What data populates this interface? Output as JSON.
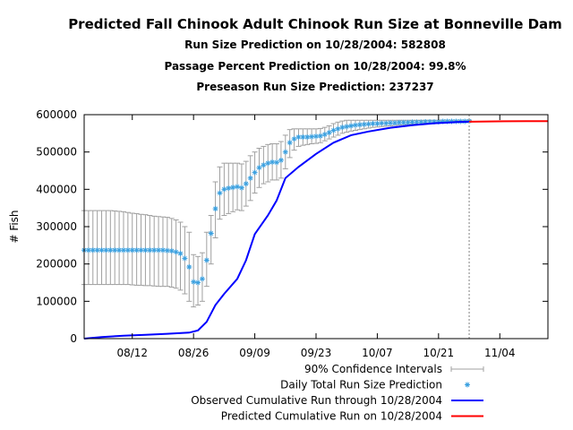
{
  "chart_data": {
    "type": "line",
    "title": "Predicted Fall Chinook Adult Chinook Run Size at Bonneville Dam",
    "subtitles": [
      "Run Size Prediction on 10/28/2004: 582808",
      "Passage Percent Prediction on 10/28/2004: 99.8%",
      "Preseason Run Size Prediction: 237237"
    ],
    "ylabel": "# Fish",
    "xlabel": "",
    "x_range": [
      "2004-08-01",
      "2004-11-15"
    ],
    "ylim": [
      0,
      600000
    ],
    "y_ticks": [
      0,
      100000,
      200000,
      300000,
      400000,
      500000,
      600000
    ],
    "y_tick_labels": [
      "0",
      "100000",
      "200000",
      "300000",
      "400000",
      "500000",
      "600000"
    ],
    "x_ticks": [
      "2004-08-12",
      "2004-08-26",
      "2004-09-09",
      "2004-09-23",
      "2004-10-07",
      "2004-10-21",
      "2004-11-04"
    ],
    "x_tick_labels": [
      "08/12",
      "08/26",
      "09/09",
      "09/23",
      "10/07",
      "10/21",
      "11/04"
    ],
    "prediction_date": "2004-10-28",
    "colors": {
      "observed": "#0000ff",
      "predicted": "#ff0000",
      "daily": "#3aa0e0",
      "ci": "#a0a0a0",
      "vline": "#808080"
    },
    "legend_position": "bottom-right",
    "legend": [
      {
        "label": "90% Confidence Intervals",
        "kind": "ci"
      },
      {
        "label": "Daily Total Run Size Prediction",
        "kind": "daily"
      },
      {
        "label": "Observed Cumulative Run through 10/28/2004",
        "kind": "observed"
      },
      {
        "label": "Predicted Cumulative Run on 10/28/2004",
        "kind": "predicted"
      }
    ],
    "series": [
      {
        "name": "Observed Cumulative Run through 10/28/2004",
        "type": "line",
        "points": [
          [
            "2004-08-01",
            0
          ],
          [
            "2004-08-05",
            4000
          ],
          [
            "2004-08-10",
            8000
          ],
          [
            "2004-08-15",
            10000
          ],
          [
            "2004-08-20",
            13000
          ],
          [
            "2004-08-25",
            16000
          ],
          [
            "2004-08-27",
            22000
          ],
          [
            "2004-08-29",
            45000
          ],
          [
            "2004-08-31",
            90000
          ],
          [
            "2004-09-02",
            120000
          ],
          [
            "2004-09-05",
            160000
          ],
          [
            "2004-09-07",
            210000
          ],
          [
            "2004-09-09",
            280000
          ],
          [
            "2004-09-12",
            330000
          ],
          [
            "2004-09-14",
            370000
          ],
          [
            "2004-09-16",
            430000
          ],
          [
            "2004-09-19",
            460000
          ],
          [
            "2004-09-23",
            495000
          ],
          [
            "2004-09-27",
            525000
          ],
          [
            "2004-10-01",
            545000
          ],
          [
            "2004-10-05",
            555000
          ],
          [
            "2004-10-10",
            565000
          ],
          [
            "2004-10-15",
            572000
          ],
          [
            "2004-10-20",
            577000
          ],
          [
            "2004-10-25",
            580000
          ],
          [
            "2004-10-28",
            581000
          ]
        ]
      },
      {
        "name": "Predicted Cumulative Run on 10/28/2004",
        "type": "line",
        "points": [
          [
            "2004-10-28",
            581000
          ],
          [
            "2004-11-01",
            581800
          ],
          [
            "2004-11-05",
            582200
          ],
          [
            "2004-11-10",
            582600
          ],
          [
            "2004-11-15",
            582808
          ]
        ]
      },
      {
        "name": "Daily Total Run Size Prediction",
        "type": "scatter_with_error",
        "points": [
          [
            "2004-08-01",
            237000,
            145000,
            343000
          ],
          [
            "2004-08-02",
            237000,
            145000,
            343000
          ],
          [
            "2004-08-03",
            237000,
            145000,
            343000
          ],
          [
            "2004-08-04",
            237000,
            145000,
            343000
          ],
          [
            "2004-08-05",
            237000,
            145000,
            343000
          ],
          [
            "2004-08-06",
            237000,
            145000,
            343000
          ],
          [
            "2004-08-07",
            237000,
            145000,
            343000
          ],
          [
            "2004-08-08",
            237000,
            145000,
            342000
          ],
          [
            "2004-08-09",
            237000,
            145000,
            341000
          ],
          [
            "2004-08-10",
            237000,
            145000,
            340000
          ],
          [
            "2004-08-11",
            237000,
            145000,
            338000
          ],
          [
            "2004-08-12",
            237000,
            144000,
            336000
          ],
          [
            "2004-08-13",
            237000,
            143000,
            335000
          ],
          [
            "2004-08-14",
            237000,
            143000,
            333000
          ],
          [
            "2004-08-15",
            237000,
            142000,
            332000
          ],
          [
            "2004-08-16",
            237000,
            142000,
            330000
          ],
          [
            "2004-08-17",
            237000,
            141000,
            328000
          ],
          [
            "2004-08-18",
            237000,
            140000,
            327000
          ],
          [
            "2004-08-19",
            237000,
            140000,
            326000
          ],
          [
            "2004-08-20",
            236000,
            140000,
            325000
          ],
          [
            "2004-08-21",
            235000,
            138000,
            322000
          ],
          [
            "2004-08-22",
            232000,
            135000,
            318000
          ],
          [
            "2004-08-23",
            228000,
            130000,
            312000
          ],
          [
            "2004-08-24",
            215000,
            120000,
            300000
          ],
          [
            "2004-08-25",
            192000,
            100000,
            285000
          ],
          [
            "2004-08-26",
            152000,
            85000,
            225000
          ],
          [
            "2004-08-27",
            150000,
            90000,
            220000
          ],
          [
            "2004-08-28",
            160000,
            100000,
            230000
          ],
          [
            "2004-08-29",
            210000,
            140000,
            285000
          ],
          [
            "2004-08-30",
            282000,
            200000,
            330000
          ],
          [
            "2004-08-31",
            348000,
            270000,
            420000
          ],
          [
            "2004-09-01",
            390000,
            320000,
            460000
          ],
          [
            "2004-09-02",
            400000,
            330000,
            470000
          ],
          [
            "2004-09-03",
            403000,
            335000,
            470000
          ],
          [
            "2004-09-04",
            405000,
            340000,
            470000
          ],
          [
            "2004-09-05",
            407000,
            345000,
            470000
          ],
          [
            "2004-09-06",
            404000,
            343000,
            468000
          ],
          [
            "2004-09-07",
            415000,
            355000,
            475000
          ],
          [
            "2004-09-08",
            430000,
            370000,
            490000
          ],
          [
            "2004-09-09",
            445000,
            390000,
            500000
          ],
          [
            "2004-09-10",
            458000,
            405000,
            510000
          ],
          [
            "2004-09-11",
            465000,
            415000,
            515000
          ],
          [
            "2004-09-12",
            470000,
            420000,
            520000
          ],
          [
            "2004-09-13",
            473000,
            425000,
            522000
          ],
          [
            "2004-09-14",
            472000,
            425000,
            522000
          ],
          [
            "2004-09-15",
            478000,
            430000,
            528000
          ],
          [
            "2004-09-16",
            500000,
            455000,
            545000
          ],
          [
            "2004-09-17",
            525000,
            485000,
            560000
          ],
          [
            "2004-09-18",
            535000,
            505000,
            562000
          ],
          [
            "2004-09-19",
            540000,
            515000,
            562000
          ],
          [
            "2004-09-20",
            540000,
            518000,
            562000
          ],
          [
            "2004-09-21",
            540000,
            520000,
            562000
          ],
          [
            "2004-09-22",
            541000,
            522000,
            562000
          ],
          [
            "2004-09-23",
            542000,
            523000,
            562000
          ],
          [
            "2004-09-24",
            543000,
            525000,
            563000
          ],
          [
            "2004-09-25",
            547000,
            530000,
            566000
          ],
          [
            "2004-09-26",
            552000,
            535000,
            570000
          ],
          [
            "2004-09-27",
            558000,
            540000,
            576000
          ],
          [
            "2004-09-28",
            562000,
            545000,
            580000
          ],
          [
            "2004-09-29",
            566000,
            550000,
            583000
          ],
          [
            "2004-09-30",
            568000,
            553000,
            585000
          ],
          [
            "2004-10-01",
            570000,
            556000,
            585000
          ],
          [
            "2004-10-02",
            572000,
            558000,
            585000
          ],
          [
            "2004-10-03",
            573000,
            560000,
            585000
          ],
          [
            "2004-10-04",
            574000,
            562000,
            585000
          ],
          [
            "2004-10-05",
            575000,
            564000,
            585000
          ],
          [
            "2004-10-06",
            576000,
            566000,
            585000
          ],
          [
            "2004-10-07",
            576000,
            567000,
            585000
          ],
          [
            "2004-10-08",
            577000,
            568000,
            585000
          ],
          [
            "2004-10-09",
            577000,
            569000,
            585000
          ],
          [
            "2004-10-10",
            578000,
            570000,
            585000
          ],
          [
            "2004-10-11",
            578000,
            571000,
            585000
          ],
          [
            "2004-10-12",
            579000,
            572000,
            585000
          ],
          [
            "2004-10-13",
            579000,
            573000,
            585000
          ],
          [
            "2004-10-14",
            579000,
            574000,
            585000
          ],
          [
            "2004-10-15",
            580000,
            575000,
            585000
          ],
          [
            "2004-10-16",
            580000,
            575000,
            585000
          ],
          [
            "2004-10-17",
            580000,
            576000,
            585000
          ],
          [
            "2004-10-18",
            581000,
            577000,
            585000
          ],
          [
            "2004-10-19",
            581000,
            577000,
            585000
          ],
          [
            "2004-10-20",
            581000,
            578000,
            585000
          ],
          [
            "2004-10-21",
            581000,
            578000,
            585000
          ],
          [
            "2004-10-22",
            582000,
            579000,
            585000
          ],
          [
            "2004-10-23",
            582000,
            579000,
            585000
          ],
          [
            "2004-10-24",
            582000,
            580000,
            585000
          ],
          [
            "2004-10-25",
            582000,
            580000,
            585000
          ],
          [
            "2004-10-26",
            582000,
            581000,
            585000
          ],
          [
            "2004-10-27",
            582000,
            581000,
            585000
          ],
          [
            "2004-10-28",
            582808,
            581000,
            585000
          ]
        ]
      }
    ]
  }
}
